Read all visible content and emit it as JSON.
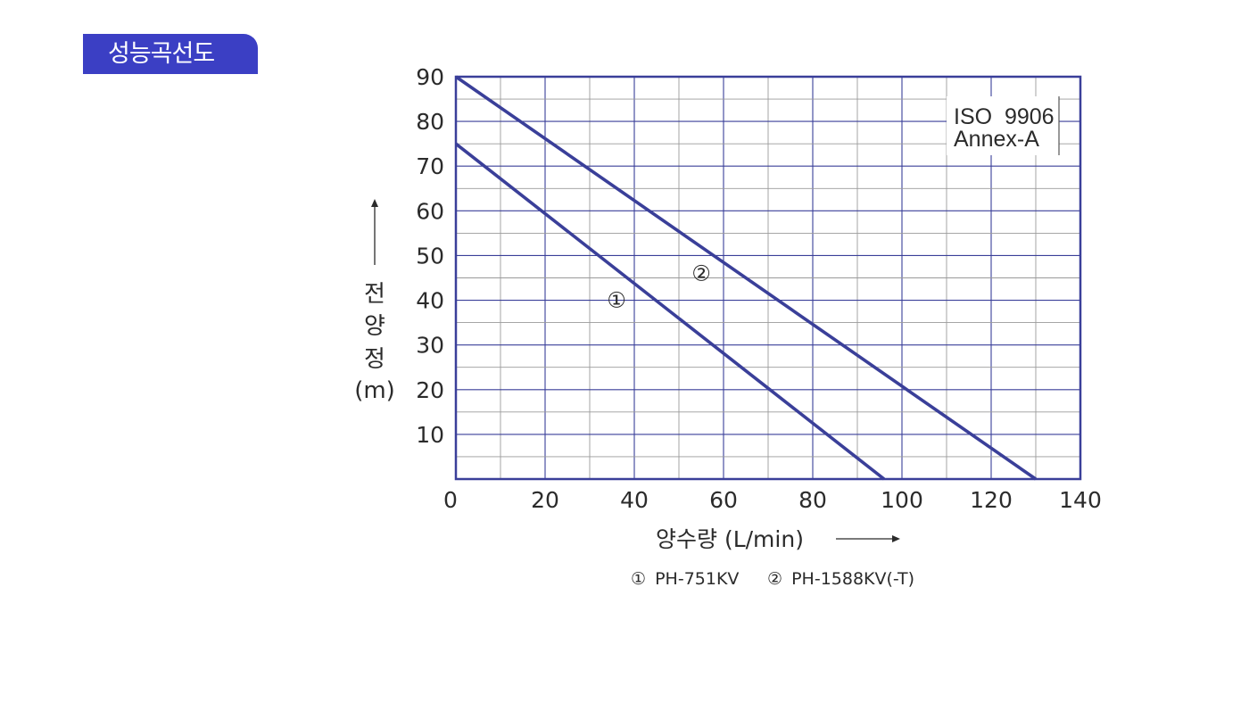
{
  "page": {
    "tag_label": "성능곡선도"
  },
  "chart_data": {
    "type": "line",
    "title": "",
    "xlabel": "양수량 (L/min)",
    "ylabel_lines": [
      "전",
      "양",
      "정",
      "(m)"
    ],
    "x_ticks": [
      "0",
      "20",
      "40",
      "60",
      "80",
      "100",
      "120",
      "140"
    ],
    "y_ticks": [
      "10",
      "20",
      "30",
      "40",
      "50",
      "60",
      "70",
      "80",
      "90"
    ],
    "xlim": [
      0,
      140
    ],
    "ylim": [
      0,
      90
    ],
    "grid": true,
    "annotation": {
      "line1": "ISO  9906",
      "line2": "Annex-A"
    },
    "line_color": "#3a3f99",
    "series": [
      {
        "marker": "①",
        "label_x": 36,
        "label_y": 40,
        "x": [
          0,
          96
        ],
        "y": [
          75,
          0
        ]
      },
      {
        "marker": "②",
        "label_x": 55,
        "label_y": 46,
        "x": [
          0,
          130
        ],
        "y": [
          90,
          0
        ]
      }
    ],
    "legend": [
      {
        "marker": "①",
        "text": "PH-751KV"
      },
      {
        "marker": "②",
        "text": "PH-1588KV(-T)"
      }
    ]
  }
}
